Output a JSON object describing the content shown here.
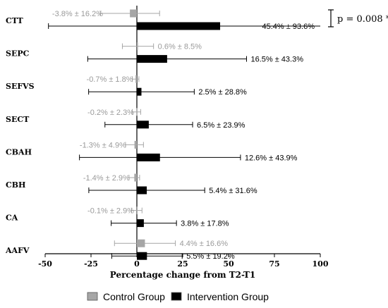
{
  "chart_data": {
    "type": "bar",
    "orientation": "horizontal",
    "error_bars": true,
    "xlabel": "Percentage change from T2-T1",
    "xlim": [
      -50,
      100
    ],
    "xticks": [
      "-50",
      "-25",
      "0",
      "25",
      "50",
      "75",
      "100"
    ],
    "categories": [
      "CTT",
      "SEPC",
      "SEFVS",
      "SECT",
      "CBAH",
      "CBH",
      "CA",
      "AAFV"
    ],
    "series": [
      {
        "name": "Control Group",
        "color": "#a6a6a6",
        "values": [
          -3.8,
          0.6,
          -0.7,
          -0.2,
          -1.3,
          -1.4,
          -0.1,
          4.4
        ],
        "errors": [
          16.2,
          8.5,
          1.8,
          2.3,
          4.9,
          2.9,
          2.9,
          16.6
        ],
        "labels": [
          "-3.8% ± 16.2%",
          "0.6% ± 8.5%",
          "-0.7% ± 1.8%",
          "-0.2% ± 2.3%",
          "-1.3% ± 4.9%",
          "-1.4% ± 2.9%",
          "-0.1% ± 2.9%",
          "4.4% ± 16.6%"
        ]
      },
      {
        "name": "Intervention Group",
        "color": "#000000",
        "values": [
          45.4,
          16.5,
          2.5,
          6.5,
          12.6,
          5.4,
          3.8,
          5.5
        ],
        "errors": [
          93.6,
          43.3,
          28.8,
          23.9,
          43.9,
          31.6,
          17.8,
          19.2
        ],
        "labels": [
          "45.4% ± 93.6%",
          "16.5% ± 43.3%",
          "2.5% ± 28.8%",
          "6.5% ± 23.9%",
          "12.6% ± 43.9%",
          "5.4% ± 31.6%",
          "3.8% ± 17.8%",
          "5.5% ± 19.2%"
        ]
      }
    ],
    "annotation": "p = 0.008 *",
    "legend_position": "bottom"
  }
}
